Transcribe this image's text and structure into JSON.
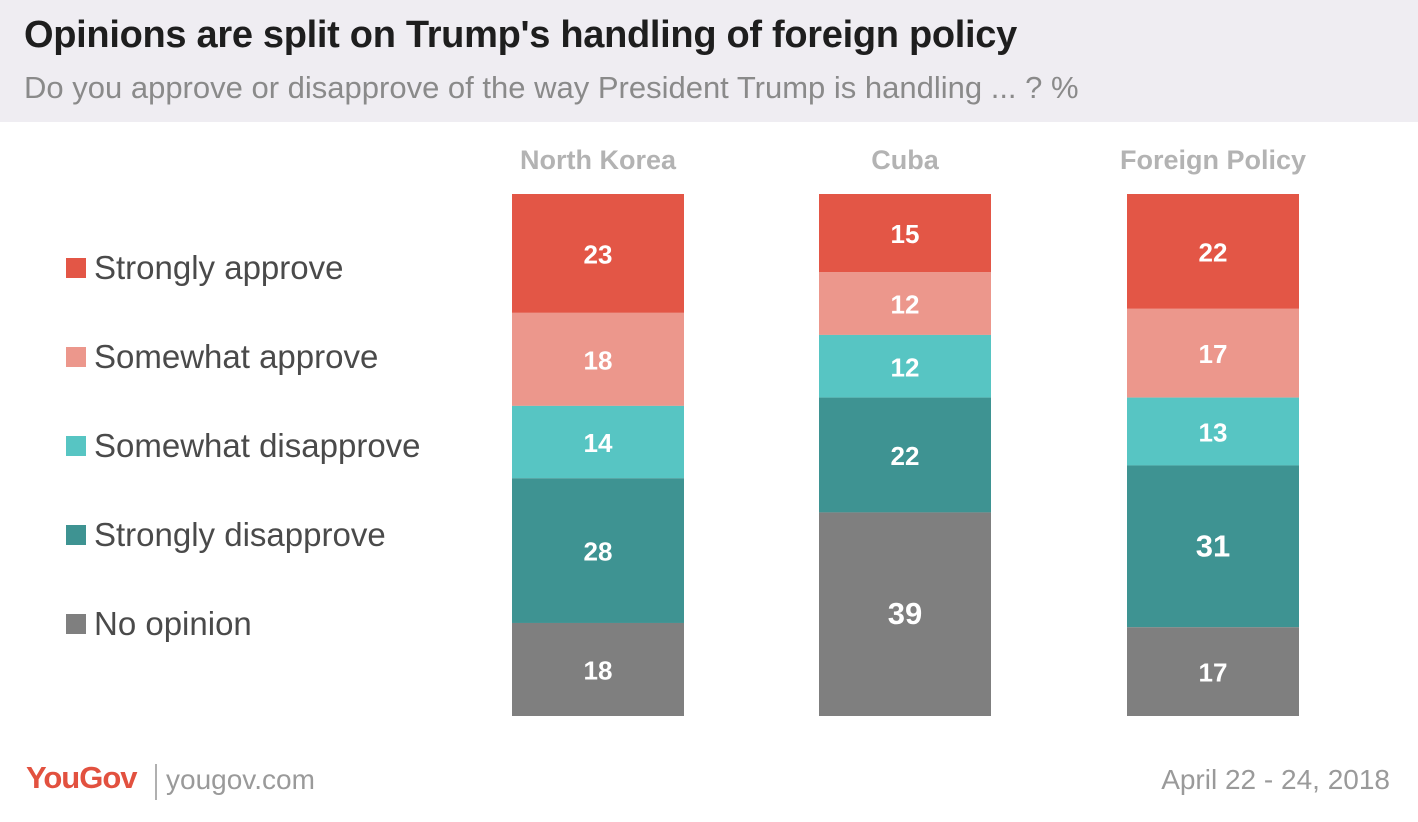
{
  "header": {
    "title": "Opinions are split on Trump's handling of foreign policy",
    "subtitle": "Do you approve or disapprove of the way President Trump is handling ... ? %"
  },
  "legend": [
    {
      "label": "Strongly approve",
      "color": "#e35646"
    },
    {
      "label": "Somewhat approve",
      "color": "#ec978c"
    },
    {
      "label": "Somewhat disapprove",
      "color": "#57c5c3"
    },
    {
      "label": "Strongly disapprove",
      "color": "#3e9392"
    },
    {
      "label": "No opinion",
      "color": "#7f7f7f"
    }
  ],
  "chart_data": {
    "type": "bar",
    "stacked": true,
    "categories": [
      "North Korea",
      "Cuba",
      "Foreign Policy"
    ],
    "series": [
      {
        "name": "Strongly approve",
        "color": "#e35646",
        "values": [
          23,
          15,
          22
        ]
      },
      {
        "name": "Somewhat approve",
        "color": "#ec978c",
        "values": [
          18,
          12,
          17
        ]
      },
      {
        "name": "Somewhat disapprove",
        "color": "#57c5c3",
        "values": [
          14,
          12,
          13
        ]
      },
      {
        "name": "Strongly disapprove",
        "color": "#3e9392",
        "values": [
          28,
          22,
          31
        ]
      },
      {
        "name": "No opinion",
        "color": "#7f7f7f",
        "values": [
          18,
          39,
          17
        ]
      }
    ],
    "title": "Opinions are split on Trump's handling of foreign policy",
    "xlabel": "",
    "ylabel": "",
    "legend_position": "left",
    "grid": false
  },
  "footer": {
    "logo": "YouGov",
    "site": "yougov.com",
    "date": "April 22 - 24, 2018"
  }
}
